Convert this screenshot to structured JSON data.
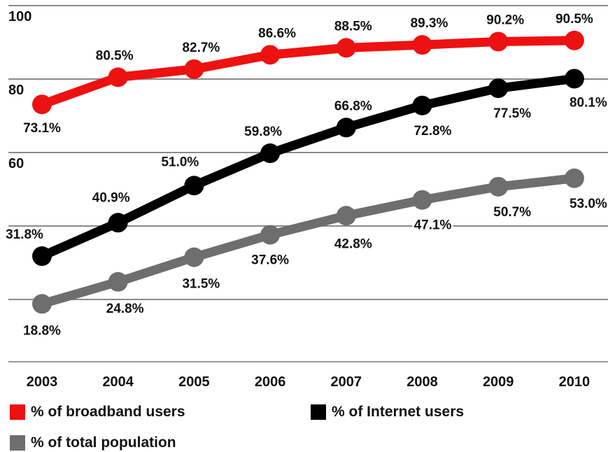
{
  "chart_data": {
    "type": "line",
    "categories": [
      "2003",
      "2004",
      "2005",
      "2006",
      "2007",
      "2008",
      "2009",
      "2010"
    ],
    "ylim": [
      20,
      100
    ],
    "yticks": [
      "100",
      "80",
      "60"
    ],
    "grid": true,
    "legend_position": "bottom",
    "series": [
      {
        "name": "% of broadband users",
        "color": "#ee1111",
        "values": [
          73.1,
          80.5,
          82.7,
          86.6,
          88.5,
          89.3,
          90.2,
          90.5
        ],
        "labels": [
          "73.1%",
          "80.5%",
          "82.7%",
          "86.6%",
          "88.5%",
          "89.3%",
          "90.2%",
          "90.5%"
        ]
      },
      {
        "name": "% of Internet users",
        "color": "#000000",
        "values": [
          31.8,
          40.9,
          51.0,
          59.8,
          66.8,
          72.8,
          77.5,
          80.1
        ],
        "labels": [
          "31.8%",
          "40.9%",
          "51.0%",
          "59.8%",
          "66.8%",
          "72.8%",
          "77.5%",
          "80.1%"
        ]
      },
      {
        "name": "% of total population",
        "color": "#6e6e6e",
        "values": [
          18.8,
          24.8,
          31.5,
          37.6,
          42.8,
          47.1,
          50.7,
          53.0
        ],
        "labels": [
          "18.8%",
          "24.8%",
          "31.5%",
          "37.6%",
          "42.8%",
          "47.1%",
          "50.7%",
          "53.0%"
        ]
      }
    ]
  }
}
